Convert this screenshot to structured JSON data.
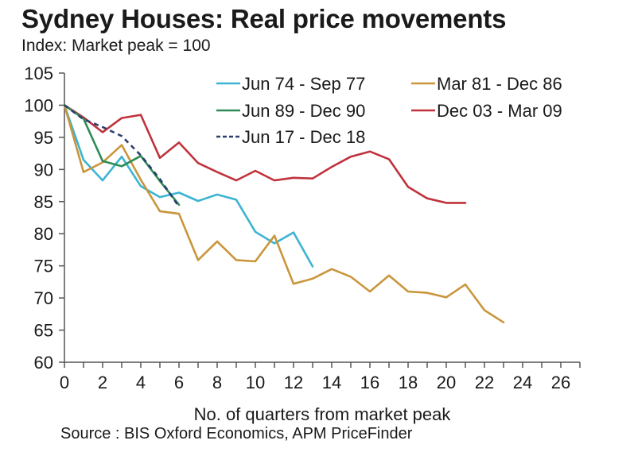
{
  "header": {
    "title": "Sydney Houses: Real price movements",
    "subtitle": "Index: Market peak = 100"
  },
  "footer": {
    "source": "Source : BIS Oxford Economics, APM PriceFinder"
  },
  "chart_data": {
    "type": "line",
    "title": "Sydney Houses: Real price movements",
    "subtitle": "Index: Market peak = 100",
    "xlabel": "No. of quarters from market peak",
    "ylabel": "",
    "xlim": [
      0,
      27
    ],
    "ylim": [
      60,
      105
    ],
    "xticks": [
      0,
      2,
      4,
      6,
      8,
      10,
      12,
      14,
      16,
      18,
      20,
      22,
      24,
      26
    ],
    "yticks": [
      60,
      65,
      70,
      75,
      80,
      85,
      90,
      95,
      100,
      105
    ],
    "grid": false,
    "legend_position": "top-right",
    "series": [
      {
        "name": "Jun 74 - Sep 77",
        "color": "#3cb4d2",
        "dashed": false,
        "x": [
          0,
          1,
          2,
          3,
          4,
          5,
          6,
          7,
          8,
          9,
          10,
          11,
          12,
          13
        ],
        "values": [
          100,
          91.5,
          88.3,
          92.0,
          87.4,
          85.7,
          86.4,
          85.1,
          86.1,
          85.3,
          80.3,
          78.5,
          80.2,
          74.9
        ]
      },
      {
        "name": "Mar 81 - Dec 86",
        "color": "#c9963c",
        "dashed": false,
        "x": [
          0,
          1,
          2,
          3,
          4,
          5,
          6,
          7,
          8,
          9,
          10,
          11,
          12,
          13,
          14,
          15,
          16,
          17,
          18,
          19,
          20,
          21,
          22,
          23
        ],
        "values": [
          100,
          89.6,
          91.1,
          93.8,
          88.4,
          83.5,
          83.1,
          75.9,
          78.8,
          75.9,
          75.7,
          79.7,
          72.2,
          73.0,
          74.5,
          73.3,
          71.0,
          73.5,
          71.0,
          70.8,
          70.1,
          72.1,
          68.1,
          66.2
        ]
      },
      {
        "name": "Jun 89 - Dec 90",
        "color": "#2e8b57",
        "dashed": false,
        "x": [
          0,
          1,
          2,
          3,
          4,
          5,
          6
        ],
        "values": [
          100,
          97.9,
          91.3,
          90.5,
          92.1,
          88.2,
          84.5
        ]
      },
      {
        "name": "Dec 03 - Mar 09",
        "color": "#c0323c",
        "dashed": false,
        "x": [
          0,
          1,
          2,
          3,
          4,
          5,
          6,
          7,
          8,
          9,
          10,
          11,
          12,
          13,
          14,
          15,
          16,
          17,
          18,
          19,
          20,
          21
        ],
        "values": [
          100,
          98.1,
          95.8,
          98.0,
          98.5,
          91.8,
          94.2,
          91.0,
          89.6,
          88.3,
          89.8,
          88.3,
          88.7,
          88.6,
          90.4,
          92.0,
          92.8,
          91.6,
          87.3,
          85.5,
          84.8,
          84.8
        ]
      },
      {
        "name": "Jun 17 - Dec 18",
        "color": "#2c3e6e",
        "dashed": true,
        "x": [
          0,
          1,
          2,
          3,
          4,
          5,
          6
        ],
        "values": [
          100,
          97.8,
          96.6,
          95.2,
          92.2,
          88.5,
          84.2
        ]
      }
    ]
  }
}
